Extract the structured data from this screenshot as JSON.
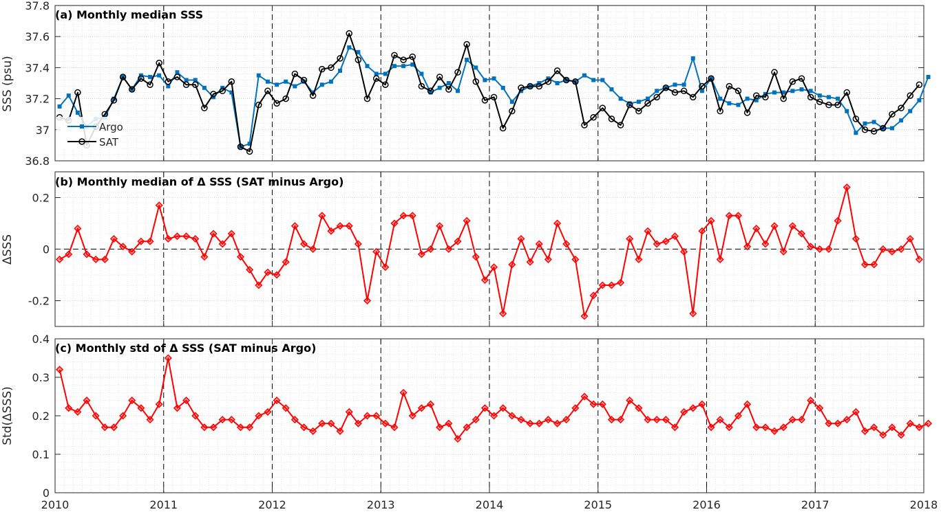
{
  "colors": {
    "argo": "#0072BD",
    "sat": "#000000",
    "delta": "#FF0000",
    "grid": "#d9d9d9",
    "axis": "#262626"
  },
  "chart_data": [
    {
      "type": "line",
      "title": "(a) Monthly median SSS",
      "ylabel": "SSS (psu)",
      "xlim": [
        2010,
        2018
      ],
      "ylim": [
        36.8,
        37.8
      ],
      "yticks": [
        "36.8",
        "37",
        "37.2",
        "37.4",
        "37.6",
        "37.8"
      ],
      "ytick_values": [
        36.8,
        37.0,
        37.2,
        37.4,
        37.6,
        37.8
      ],
      "xticks": [
        "2010",
        "2011",
        "2012",
        "2013",
        "2014",
        "2015",
        "2016",
        "2017",
        "2018"
      ],
      "grid": true,
      "legend": {
        "placement": "lower-left",
        "entries": [
          "Argo",
          "SAT"
        ]
      },
      "x_start": 2010.0417,
      "x_step": 0.08333,
      "series": [
        {
          "name": "Argo",
          "marker": "square",
          "values": [
            37.15,
            37.22,
            37.11,
            37.02,
            37.07,
            37.08,
            37.2,
            37.34,
            37.26,
            37.35,
            37.34,
            37.35,
            37.28,
            37.37,
            37.32,
            37.32,
            37.27,
            37.21,
            37.27,
            37.24,
            36.89,
            36.91,
            37.35,
            37.31,
            37.29,
            37.31,
            37.28,
            37.31,
            37.24,
            37.29,
            37.31,
            37.38,
            37.53,
            37.5,
            37.41,
            37.36,
            37.36,
            37.41,
            37.41,
            37.42,
            37.36,
            37.24,
            37.27,
            37.3,
            37.25,
            37.45,
            37.4,
            37.32,
            37.33,
            37.27,
            37.18,
            37.25,
            37.28,
            37.3,
            37.33,
            37.3,
            37.32,
            37.31,
            37.35,
            37.32,
            37.32,
            37.26,
            37.2,
            37.17,
            37.18,
            37.2,
            37.25,
            37.27,
            37.29,
            37.29,
            37.46,
            37.25,
            37.33,
            37.2,
            37.17,
            37.16,
            37.2,
            37.19,
            37.23,
            37.24,
            37.24,
            37.25,
            37.26,
            37.25,
            37.22,
            37.21,
            37.2,
            37.12,
            36.98,
            37.04,
            37.05,
            37.01,
            37.01,
            37.06,
            37.12,
            37.19,
            37.34
          ]
        },
        {
          "name": "SAT",
          "marker": "circle",
          "values": [
            37.08,
            37.06,
            37.24,
            36.9,
            37.02,
            37.1,
            37.19,
            37.34,
            37.26,
            37.33,
            37.29,
            37.43,
            37.31,
            37.34,
            37.29,
            37.29,
            37.14,
            37.23,
            37.25,
            37.31,
            36.89,
            36.86,
            37.16,
            37.25,
            37.17,
            37.2,
            37.36,
            37.32,
            37.22,
            37.39,
            37.4,
            37.46,
            37.62,
            37.45,
            37.2,
            37.33,
            37.29,
            37.48,
            37.45,
            37.47,
            37.28,
            37.25,
            37.34,
            37.26,
            37.37,
            37.55,
            37.31,
            37.19,
            37.21,
            37.01,
            37.12,
            37.27,
            37.28,
            37.28,
            37.31,
            37.38,
            37.32,
            37.31,
            37.03,
            37.08,
            37.14,
            37.07,
            37.03,
            37.16,
            37.12,
            37.17,
            37.21,
            37.27,
            37.24,
            37.25,
            37.21,
            37.28,
            37.33,
            37.12,
            37.28,
            37.25,
            37.11,
            37.22,
            37.21,
            37.37,
            37.2,
            37.31,
            37.33,
            37.21,
            37.18,
            37.16,
            37.16,
            37.24,
            37.07,
            37.0,
            36.99,
            37.01,
            37.1,
            37.14,
            37.22,
            37.29
          ]
        }
      ]
    },
    {
      "type": "line",
      "title": "(b) Monthly median of Δ SSS (SAT minus Argo)",
      "ylabel": "ΔSSS",
      "xlim": [
        2010,
        2018
      ],
      "ylim": [
        -0.3,
        0.3
      ],
      "yticks": [
        "-0.2",
        "0",
        "0.2"
      ],
      "ytick_values": [
        -0.2,
        0.0,
        0.2
      ],
      "xticks": [
        "2010",
        "2011",
        "2012",
        "2013",
        "2014",
        "2015",
        "2016",
        "2017",
        "2018"
      ],
      "grid": true,
      "zero_line": true,
      "x_start": 2010.0417,
      "x_step": 0.08333,
      "series": [
        {
          "name": "",
          "marker": "diamond",
          "values": [
            -0.04,
            -0.02,
            0.08,
            -0.02,
            -0.04,
            -0.04,
            0.04,
            0.01,
            -0.01,
            0.03,
            0.03,
            0.17,
            0.04,
            0.05,
            0.05,
            0.04,
            -0.03,
            0.06,
            0.02,
            0.06,
            -0.03,
            -0.08,
            -0.14,
            -0.09,
            -0.1,
            -0.05,
            0.09,
            0.02,
            0.0,
            0.13,
            0.07,
            0.09,
            0.09,
            0.02,
            -0.2,
            -0.01,
            -0.07,
            0.1,
            0.13,
            0.13,
            -0.02,
            0.0,
            0.09,
            0.0,
            0.03,
            0.11,
            -0.03,
            -0.12,
            -0.07,
            -0.25,
            -0.06,
            0.04,
            -0.05,
            0.02,
            -0.04,
            0.1,
            0.02,
            -0.04,
            -0.26,
            -0.18,
            -0.14,
            -0.14,
            -0.13,
            0.04,
            -0.04,
            0.07,
            0.02,
            0.03,
            0.05,
            -0.01,
            -0.25,
            0.07,
            0.11,
            -0.04,
            0.13,
            0.13,
            0.01,
            0.08,
            0.02,
            0.09,
            -0.01,
            0.09,
            0.06,
            0.01,
            0.0,
            0.0,
            0.11,
            0.24,
            0.04,
            -0.06,
            -0.06,
            0.0,
            -0.01,
            0.0,
            0.04,
            -0.04
          ]
        }
      ]
    },
    {
      "type": "line",
      "title": "(c) Monthly std of Δ SSS (SAT minus Argo)",
      "ylabel": "Std(ΔSSS)",
      "xlim": [
        2010,
        2018
      ],
      "ylim": [
        0,
        0.4
      ],
      "yticks": [
        "0",
        "0.1",
        "0.2",
        "0.3",
        "0.4"
      ],
      "ytick_values": [
        0.0,
        0.1,
        0.2,
        0.3,
        0.4
      ],
      "xticks": [
        "2010",
        "2011",
        "2012",
        "2013",
        "2014",
        "2015",
        "2016",
        "2017",
        "2018"
      ],
      "grid": true,
      "x_start": 2010.0417,
      "x_step": 0.08333,
      "series": [
        {
          "name": "",
          "marker": "diamond",
          "values": [
            0.32,
            0.22,
            0.21,
            0.24,
            0.2,
            0.17,
            0.17,
            0.2,
            0.24,
            0.22,
            0.19,
            0.23,
            0.35,
            0.22,
            0.24,
            0.2,
            0.17,
            0.17,
            0.19,
            0.19,
            0.17,
            0.17,
            0.2,
            0.21,
            0.24,
            0.22,
            0.19,
            0.17,
            0.16,
            0.18,
            0.18,
            0.16,
            0.21,
            0.18,
            0.2,
            0.2,
            0.18,
            0.17,
            0.26,
            0.2,
            0.22,
            0.23,
            0.17,
            0.18,
            0.14,
            0.17,
            0.19,
            0.22,
            0.2,
            0.22,
            0.2,
            0.19,
            0.18,
            0.18,
            0.19,
            0.18,
            0.19,
            0.22,
            0.25,
            0.23,
            0.23,
            0.19,
            0.19,
            0.24,
            0.22,
            0.19,
            0.19,
            0.19,
            0.17,
            0.21,
            0.22,
            0.23,
            0.17,
            0.19,
            0.17,
            0.2,
            0.23,
            0.17,
            0.17,
            0.16,
            0.17,
            0.19,
            0.19,
            0.24,
            0.22,
            0.18,
            0.18,
            0.19,
            0.21,
            0.16,
            0.17,
            0.15,
            0.17,
            0.15,
            0.18,
            0.17,
            0.18
          ]
        }
      ]
    }
  ]
}
